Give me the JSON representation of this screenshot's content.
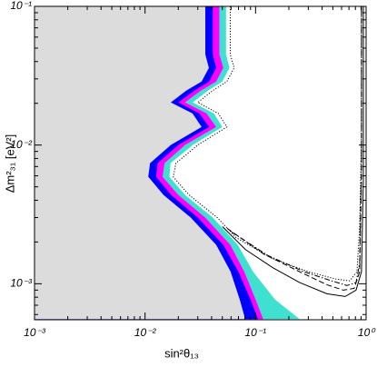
{
  "chart_data": {
    "type": "region",
    "xlabel": "sin²θ₁₃",
    "ylabel": "Δm²₃₁ [eV²]",
    "log_x": true,
    "log_y": true,
    "minor_ticks": true,
    "xlim": [
      0.001,
      1
    ],
    "ylim": [
      0.00055,
      0.1
    ],
    "xticks": [
      {
        "value": 0.001,
        "label": "10⁻³"
      },
      {
        "value": 0.01,
        "label": "10⁻²"
      },
      {
        "value": 0.1,
        "label": "10⁻¹"
      },
      {
        "value": 1,
        "label": "10⁰"
      }
    ],
    "yticks": [
      {
        "value": 0.001,
        "label": "10⁻³"
      },
      {
        "value": 0.01,
        "label": "10⁻²"
      },
      {
        "value": 0.1,
        "label": "10⁻¹"
      }
    ],
    "y": [
      0.1,
      0.0608,
      0.0451,
      0.036,
      0.0287,
      0.0247,
      0.0203,
      0.0169,
      0.0135,
      0.01,
      0.0074,
      0.0059,
      0.00437,
      0.003,
      0.00191,
      0.00122,
      0.00077,
      0.000556
    ],
    "regions": [
      {
        "color": "#40e0d0",
        "x": [
          0.054,
          0.054,
          0.054,
          0.058,
          0.05,
          0.037,
          0.027,
          0.042,
          0.05,
          0.027,
          0.017,
          0.0166,
          0.023,
          0.041,
          0.069,
          0.095,
          0.15,
          0.25
        ]
      },
      {
        "color": "#ff00ff",
        "x": [
          0.047,
          0.047,
          0.047,
          0.051,
          0.044,
          0.032,
          0.023,
          0.036,
          0.044,
          0.023,
          0.015,
          0.0144,
          0.02,
          0.035,
          0.059,
          0.079,
          0.1,
          0.117
        ]
      },
      {
        "color": "#0000ff",
        "x": [
          0.041,
          0.041,
          0.041,
          0.044,
          0.038,
          0.028,
          0.02,
          0.031,
          0.038,
          0.02,
          0.013,
          0.0126,
          0.0172,
          0.03,
          0.051,
          0.07,
          0.09,
          0.105
        ]
      },
      {
        "color": "#dcdcdc",
        "x": [
          0.0351,
          0.0351,
          0.0351,
          0.0378,
          0.0325,
          0.0236,
          0.0171,
          0.0269,
          0.0325,
          0.0171,
          0.0111,
          0.0107,
          0.0147,
          0.0259,
          0.044,
          0.0595,
          0.0719,
          0.0806
        ]
      }
    ],
    "series": [
      {
        "color": "#000000",
        "dash": "dotted",
        "x": [
          0.059,
          0.059,
          0.059,
          0.064,
          0.055,
          0.041,
          0.03,
          0.046,
          0.055,
          0.03,
          0.019,
          0.018,
          0.025,
          0.045,
          0.0667,
          0.142,
          0.303,
          0.535,
          0.71,
          0.826,
          0.874,
          0.908,
          0.908
        ],
        "y": [
          0.1,
          0.0608,
          0.0451,
          0.036,
          0.0287,
          0.0247,
          0.0203,
          0.0169,
          0.0135,
          0.01,
          0.0074,
          0.0059,
          0.00437,
          0.003,
          0.00215,
          0.00152,
          0.00122,
          0.00108,
          0.00105,
          0.00122,
          0.00258,
          0.0116,
          0.1
        ]
      },
      {
        "color": "#000000",
        "dash": "dashdot",
        "x": [
          0.0607,
          0.129,
          0.275,
          0.486,
          0.671,
          0.811,
          0.874,
          0.908,
          0.908
        ],
        "y": [
          0.00236,
          0.0016,
          0.00122,
          0.00105,
          0.000971,
          0.00102,
          0.00141,
          0.0074,
          0.1
        ]
      },
      {
        "color": "#000000",
        "dash": "dashed",
        "x": [
          0.0552,
          0.118,
          0.251,
          0.442,
          0.622,
          0.78,
          0.874,
          0.908,
          0.908
        ],
        "y": [
          0.00251,
          0.00164,
          0.00122,
          0.000984,
          0.000899,
          0.000927,
          0.00122,
          0.00548,
          0.1
        ]
      },
      {
        "color": "#000000",
        "dash": "solid",
        "x": [
          0.0502,
          0.0806,
          0.142,
          0.251,
          0.442,
          0.646,
          0.811,
          0.908,
          0.944,
          0.944
        ],
        "y": [
          0.00258,
          0.00177,
          0.00131,
          0.00102,
          0.000847,
          0.000809,
          0.000899,
          0.00122,
          0.00548,
          0.1
        ]
      }
    ]
  }
}
